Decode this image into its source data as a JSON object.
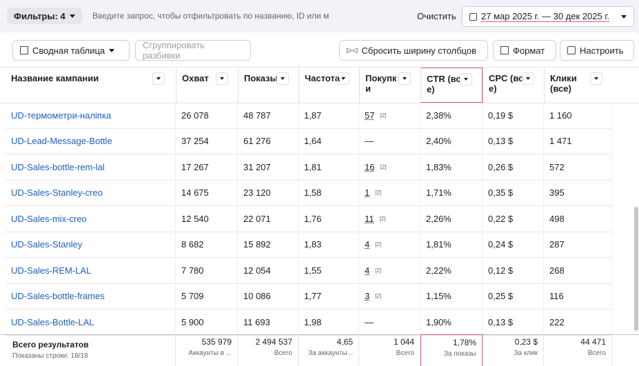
{
  "toolbar": {
    "filters": "Фильтры: 4",
    "search_placeholder": "Введите запрос, чтобы отфильтровать по названию, ID или м",
    "clear": "Очистить",
    "date_range": "27 мар 2025 г. — 30 дек 2025 г."
  },
  "actions": {
    "pivot": "Сводная таблица",
    "group": "Сгруппировать разбивки",
    "reset": "Сбросить ширину столбцов",
    "format": "Формат",
    "customize": "Настроить"
  },
  "table": {
    "columns": [
      "Название кампании",
      "Охват",
      "Показы",
      "Частота",
      "Покупки",
      "CTR (все)",
      "CPC (все)",
      "Клики (все)"
    ],
    "rows": [
      {
        "name": "UD-термометри-наліпка",
        "reach": "26 078",
        "impressions": "48 787",
        "frequency": "1,87",
        "purchases": "57",
        "purchases_note": "[2]",
        "ctr": "2,38%",
        "cpc": "0,19 $",
        "clicks": "1 160"
      },
      {
        "name": "UD-Lead-Message-Bottle",
        "reach": "37 254",
        "impressions": "61 276",
        "frequency": "1,64",
        "purchases": "—",
        "ctr": "2,40%",
        "cpc": "0,13 $",
        "clicks": "1 471"
      },
      {
        "name": "UD-Sales-bottle-rem-lal",
        "reach": "17 267",
        "impressions": "31 207",
        "frequency": "1,81",
        "purchases": "16",
        "purchases_note": "[2]",
        "ctr": "1,83%",
        "cpc": "0,26 $",
        "clicks": "572"
      },
      {
        "name": "UD-Sales-Stanley-creo",
        "reach": "14 675",
        "impressions": "23 120",
        "frequency": "1,58",
        "purchases": "1",
        "purchases_note": "[2]",
        "ctr": "1,71%",
        "cpc": "0,35 $",
        "clicks": "395"
      },
      {
        "name": "UD-Sales-mix-creo",
        "reach": "12 540",
        "impressions": "22 071",
        "frequency": "1,76",
        "purchases": "11",
        "purchases_note": "[2]",
        "ctr": "2,26%",
        "cpc": "0,22 $",
        "clicks": "498"
      },
      {
        "name": "UD-Sales-Stanley",
        "reach": "8 682",
        "impressions": "15 892",
        "frequency": "1,83",
        "purchases": "4",
        "purchases_note": "[2]",
        "ctr": "1,81%",
        "cpc": "0,24 $",
        "clicks": "287"
      },
      {
        "name": "UD-Sales-REM-LAL",
        "reach": "7 780",
        "impressions": "12 054",
        "frequency": "1,55",
        "purchases": "4",
        "purchases_note": "[2]",
        "ctr": "2,22%",
        "cpc": "0,12 $",
        "clicks": "268"
      },
      {
        "name": "UD-Sales-bottle-frames",
        "reach": "5 709",
        "impressions": "10 086",
        "frequency": "1,77",
        "purchases": "3",
        "purchases_note": "[2]",
        "ctr": "1,15%",
        "cpc": "0,25 $",
        "clicks": "116"
      },
      {
        "name": "UD-Sales-Bottle-LAL",
        "reach": "5 900",
        "impressions": "11 693",
        "frequency": "1,98",
        "purchases": "—",
        "ctr": "1,90%",
        "cpc": "0,13 $",
        "clicks": "222"
      }
    ],
    "totals": {
      "label": "Всего результатов",
      "rows_shown": "Показаны строки: 18/18",
      "cells": [
        {
          "value": "535 979",
          "sub": "Аккаунты в ..."
        },
        {
          "value": "2 494 537",
          "sub": "Всего"
        },
        {
          "value": "4,65",
          "sub": "За аккаунты..."
        },
        {
          "value": "1 044",
          "sub": "Всего"
        },
        {
          "value": "1,78%",
          "sub": "За показы"
        },
        {
          "value": "0,23 $",
          "sub": "За клик"
        },
        {
          "value": "44 471",
          "sub": "Всего"
        }
      ]
    }
  }
}
